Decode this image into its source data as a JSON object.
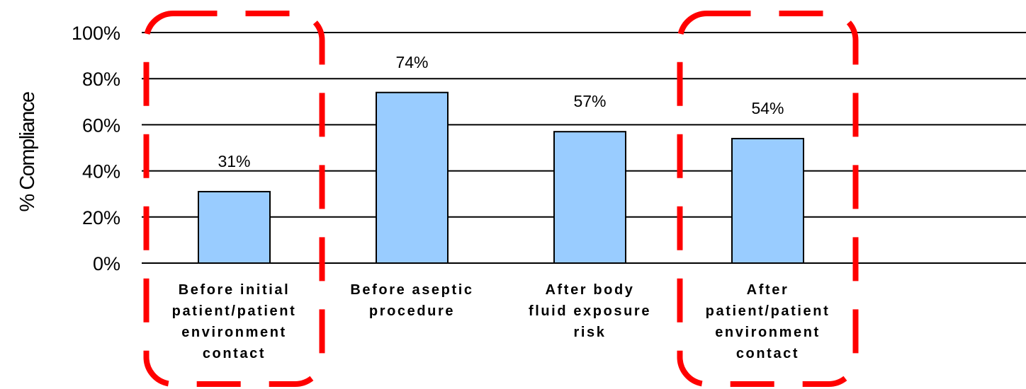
{
  "chart_data": {
    "type": "bar",
    "ylabel": "% Compliance",
    "ylim": [
      0,
      100
    ],
    "yticks": [
      "0%",
      "20%",
      "40%",
      "60%",
      "80%",
      "100%"
    ],
    "grid": true,
    "legend": "none",
    "categories": [
      [
        "Before initial",
        "patient/patient",
        "environment",
        "contact"
      ],
      [
        "Before aseptic",
        "procedure"
      ],
      [
        "After body",
        "fluid exposure",
        "risk"
      ],
      [
        "After",
        "patient/patient",
        "environment",
        "contact"
      ]
    ],
    "values": [
      31,
      74,
      57,
      54
    ],
    "data_labels": [
      "31%",
      "74%",
      "57%",
      "54%"
    ],
    "highlighted_categories": [
      0,
      3
    ],
    "colors": {
      "bar_fill": "#99ccff",
      "bar_stroke": "#000000",
      "gridline": "#000000",
      "highlight_box": "#ff0000"
    }
  }
}
